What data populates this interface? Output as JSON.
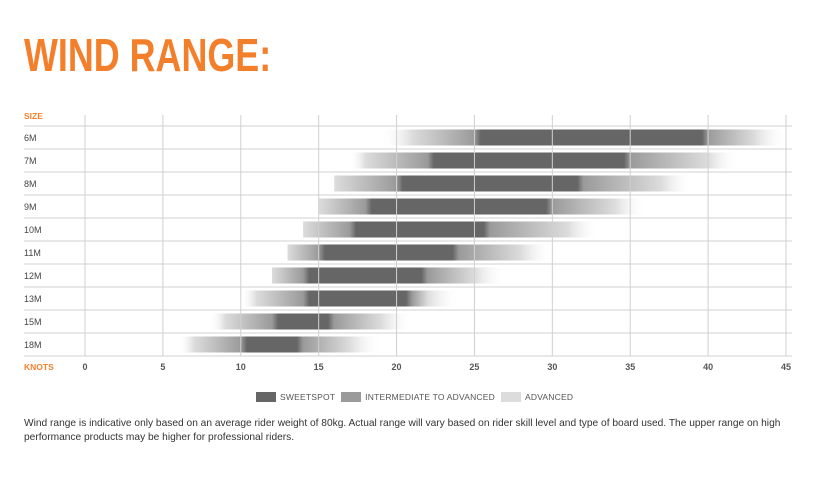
{
  "title": "WIND RANGE:",
  "chart_data": {
    "type": "bar",
    "orientation": "horizontal",
    "size_header": "SIZE",
    "x_axis_label": "KNOTS",
    "xlim": [
      0,
      45
    ],
    "x_ticks": [
      "0",
      "5",
      "10",
      "15",
      "20",
      "25",
      "30",
      "35",
      "40",
      "45"
    ],
    "grid": "vertical",
    "categories": [
      "6M",
      "7M",
      "8M",
      "9M",
      "10M",
      "11M",
      "12M",
      "13M",
      "15M",
      "18M"
    ],
    "series": [
      {
        "name": "SWEETSPOT",
        "ranges": [
          [
            25,
            40
          ],
          [
            22,
            35
          ],
          [
            20,
            32
          ],
          [
            18,
            30
          ],
          [
            17,
            26
          ],
          [
            15,
            24
          ],
          [
            14,
            22
          ],
          [
            14,
            21
          ],
          [
            12,
            16
          ],
          [
            10,
            14
          ]
        ]
      },
      {
        "name": "INTERMEDIATE TO ADVANCED",
        "ranges": [
          [
            21,
            43
          ],
          [
            18,
            40
          ],
          [
            16,
            37
          ],
          [
            15,
            34
          ],
          [
            14,
            31
          ],
          [
            13,
            28
          ],
          [
            12,
            25
          ],
          [
            11,
            22
          ],
          [
            9,
            19
          ],
          [
            7,
            17
          ]
        ]
      },
      {
        "name": "ADVANCED",
        "ranges": [
          [
            19,
            45
          ],
          [
            17,
            42
          ],
          [
            16,
            39
          ],
          [
            15,
            36
          ],
          [
            14,
            33
          ],
          [
            13,
            30
          ],
          [
            12,
            27
          ],
          [
            10,
            24
          ],
          [
            8,
            21
          ],
          [
            6,
            19
          ]
        ]
      }
    ],
    "colors": {
      "sweetspot": "#666666",
      "intermediate": "#9a9a9a",
      "advanced": "#dcdcdc",
      "accent": "#f37f2b",
      "grid": "#d0d0d0"
    }
  },
  "legend": {
    "sweetspot": "SWEETSPOT",
    "intermediate": "INTERMEDIATE TO ADVANCED",
    "advanced": "ADVANCED"
  },
  "note": "Wind range is indicative only based on an average rider weight of 80kg. Actual range will vary based on rider skill level and type of board used. The upper range on high performance products may be higher for professional riders."
}
